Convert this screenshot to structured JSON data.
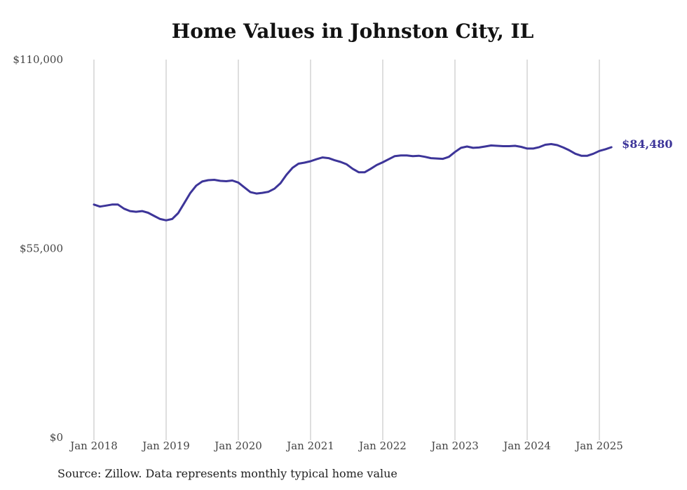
{
  "chart_data": {
    "type": "line",
    "title": "Home Values in Johnston City, IL",
    "source_note": "Source: Zillow. Data represents monthly typical home value",
    "ylim": [
      0,
      110000
    ],
    "y_ticks": [
      {
        "value": 0,
        "label": "$0"
      },
      {
        "value": 55000,
        "label": "$55,000"
      },
      {
        "value": 110000,
        "label": "$110,000"
      }
    ],
    "x_ticks": [
      {
        "value": "2018-01",
        "label": "Jan 2018"
      },
      {
        "value": "2019-01",
        "label": "Jan 2019"
      },
      {
        "value": "2020-01",
        "label": "Jan 2020"
      },
      {
        "value": "2021-01",
        "label": "Jan 2021"
      },
      {
        "value": "2022-01",
        "label": "Jan 2022"
      },
      {
        "value": "2023-01",
        "label": "Jan 2023"
      },
      {
        "value": "2024-01",
        "label": "Jan 2024"
      },
      {
        "value": "2025-01",
        "label": "Jan 2025"
      }
    ],
    "grid": "vertical",
    "line_color": "#3d3599",
    "end_label": "$84,480",
    "series": [
      {
        "x": [
          "2018-01",
          "2018-02",
          "2018-03",
          "2018-04",
          "2018-05",
          "2018-06",
          "2018-07",
          "2018-08",
          "2018-09",
          "2018-10",
          "2018-11",
          "2018-12",
          "2019-01",
          "2019-02",
          "2019-03",
          "2019-04",
          "2019-05",
          "2019-06",
          "2019-07",
          "2019-08",
          "2019-09",
          "2019-10",
          "2019-11",
          "2019-12",
          "2020-01",
          "2020-02",
          "2020-03",
          "2020-04",
          "2020-05",
          "2020-06",
          "2020-07",
          "2020-08",
          "2020-09",
          "2020-10",
          "2020-11",
          "2020-12",
          "2021-01",
          "2021-02",
          "2021-03",
          "2021-04",
          "2021-05",
          "2021-06",
          "2021-07",
          "2021-08",
          "2021-09",
          "2021-10",
          "2021-11",
          "2021-12",
          "2022-01",
          "2022-02",
          "2022-03",
          "2022-04",
          "2022-05",
          "2022-06",
          "2022-07",
          "2022-08",
          "2022-09",
          "2022-10",
          "2022-11",
          "2022-12",
          "2023-01",
          "2023-02",
          "2023-03",
          "2023-04",
          "2023-05",
          "2023-06",
          "2023-07",
          "2023-08",
          "2023-09",
          "2023-10",
          "2023-11",
          "2023-12",
          "2024-01",
          "2024-02",
          "2024-03",
          "2024-04",
          "2024-05",
          "2024-06",
          "2024-07",
          "2024-08",
          "2024-09",
          "2024-10",
          "2024-11",
          "2024-12",
          "2025-01",
          "2025-02",
          "2025-03"
        ],
        "values": [
          67800,
          67200,
          67500,
          67800,
          67800,
          66600,
          65900,
          65700,
          65900,
          65400,
          64500,
          63600,
          63200,
          63600,
          65300,
          68200,
          71100,
          73300,
          74500,
          74900,
          75000,
          74700,
          74600,
          74800,
          74200,
          72800,
          71400,
          71000,
          71200,
          71500,
          72400,
          74000,
          76500,
          78500,
          79700,
          80000,
          80400,
          81000,
          81500,
          81300,
          80700,
          80200,
          79500,
          78200,
          77200,
          77200,
          78200,
          79300,
          80100,
          81000,
          81900,
          82100,
          82100,
          81900,
          82000,
          81700,
          81300,
          81200,
          81100,
          81700,
          83100,
          84300,
          84700,
          84300,
          84400,
          84700,
          85000,
          84900,
          84800,
          84800,
          84900,
          84600,
          84100,
          84100,
          84500,
          85200,
          85400,
          85100,
          84400,
          83600,
          82600,
          82000,
          82000,
          82600,
          83400,
          83900,
          84480
        ]
      }
    ]
  }
}
